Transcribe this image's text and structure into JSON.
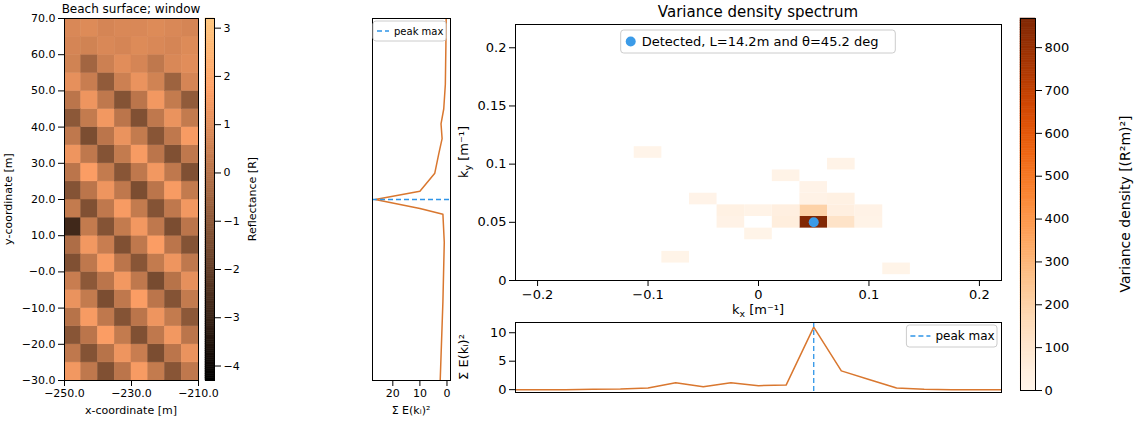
{
  "chart_data": [
    {
      "type": "heatmap",
      "title": "Beach surface; window",
      "xlabel": "x-coordinate [m]",
      "ylabel": "y-coordinate [m]",
      "xlim": [
        -250,
        -210
      ],
      "ylim": [
        -30,
        70
      ],
      "xticks": [
        {
          "value": -250,
          "label": "−250.0"
        },
        {
          "value": -230,
          "label": "−230.0"
        },
        {
          "value": -210,
          "label": "−210.0"
        }
      ],
      "yticks": [
        {
          "value": 70,
          "label": "70.0"
        },
        {
          "value": 60,
          "label": "60.0"
        },
        {
          "value": 50,
          "label": "50.0"
        },
        {
          "value": 40,
          "label": "40.0"
        },
        {
          "value": 30,
          "label": "30.0"
        },
        {
          "value": 20,
          "label": "20.0"
        },
        {
          "value": 10,
          "label": "10.0"
        },
        {
          "value": 0,
          "label": "−0.0"
        },
        {
          "value": -10,
          "label": "−10.0"
        },
        {
          "value": -20,
          "label": "−20.0"
        },
        {
          "value": -30,
          "label": "−30.0"
        }
      ],
      "x_edges": [
        -250,
        -245,
        -240,
        -235,
        -230,
        -225,
        -220,
        -215,
        -210
      ],
      "y_edges": [
        -30,
        -25,
        -20,
        -15,
        -10,
        -5,
        0,
        5,
        10,
        15,
        20,
        25,
        30,
        35,
        40,
        45,
        50,
        55,
        60,
        65,
        70
      ],
      "z": [
        [
          1.4,
          0.2,
          -1.3,
          0.1,
          1.5,
          0.3,
          -1.1,
          0.2
        ],
        [
          0.2,
          -1.2,
          0.0,
          1.3,
          0.4,
          -1.4,
          0.1,
          1.2
        ],
        [
          -1.1,
          0.1,
          1.6,
          0.3,
          -1.3,
          0.2,
          1.4,
          0.1
        ],
        [
          0.0,
          1.5,
          0.2,
          -1.2,
          0.1,
          1.3,
          0.3,
          -1.0
        ],
        [
          1.2,
          0.3,
          -1.4,
          0.2,
          1.6,
          0.1,
          -1.2,
          0.3
        ],
        [
          0.4,
          -1.0,
          0.1,
          1.4,
          0.2,
          -1.5,
          0.0,
          1.1
        ],
        [
          -1.3,
          0.2,
          1.5,
          0.1,
          -1.1,
          0.3,
          1.3,
          0.2
        ],
        [
          -0.2,
          1.4,
          0.4,
          -1.3,
          0.2,
          1.6,
          0.1,
          -1.2
        ],
        [
          -2.8,
          0.3,
          -1.2,
          0.3,
          1.4,
          0.2,
          -1.4,
          0.1
        ],
        [
          0.3,
          -1.3,
          0.2,
          1.5,
          0.3,
          -1.2,
          0.2,
          1.4
        ],
        [
          -1.2,
          0.1,
          1.3,
          0.2,
          -1.4,
          0.1,
          1.5,
          0.3
        ],
        [
          0.1,
          1.6,
          0.3,
          -1.1,
          0.2,
          1.4,
          0.2,
          -1.3
        ],
        [
          1.3,
          0.2,
          -1.2,
          0.3,
          1.5,
          0.1,
          -1.3,
          0.2
        ],
        [
          0.2,
          -1.4,
          0.1,
          1.2,
          0.3,
          -1.1,
          0.2,
          1.5
        ],
        [
          -1.0,
          0.3,
          1.4,
          0.1,
          -1.3,
          0.2,
          1.2,
          0.3
        ],
        [
          0.1,
          1.3,
          0.2,
          -1.2,
          0.1,
          1.4,
          0.3,
          -0.9
        ],
        [
          1.1,
          0.4,
          -0.9,
          0.5,
          1.2,
          0.6,
          -0.6,
          0.7
        ],
        [
          0.6,
          -0.5,
          0.5,
          1.0,
          0.7,
          0.2,
          0.8,
          1.0
        ],
        [
          0.7,
          0.6,
          0.8,
          0.7,
          0.9,
          0.8,
          0.7,
          0.9
        ],
        [
          0.8,
          0.9,
          0.7,
          0.8,
          0.8,
          0.9,
          0.8,
          0.7
        ]
      ],
      "colorbar": {
        "label": "Reflectance [R]",
        "range": [
          -4.3,
          3.2
        ],
        "ticks": [
          3,
          2,
          1,
          0,
          {
            "value": -1,
            "label": "−1"
          },
          {
            "value": -2,
            "label": "−2"
          },
          {
            "value": -3,
            "label": "−3"
          },
          {
            "value": -4,
            "label": "−4"
          }
        ]
      }
    },
    {
      "type": "line",
      "xlabel": "Σ E(kᵢ)²",
      "xlim": [
        27.5,
        -1.3
      ],
      "xticks": [
        20,
        10,
        0
      ],
      "ylim": [
        -0.22,
        0.22
      ],
      "tick_labels": "x",
      "x": [
        0.3,
        0.4,
        0.5,
        0.6,
        1.2,
        2.2,
        1.8,
        3.0,
        4.5,
        10,
        26.5,
        10,
        1.5,
        1.0,
        1.5,
        2.5
      ],
      "y": [
        0.22,
        0.187,
        0.164,
        0.14,
        0.11,
        0.092,
        0.074,
        0.056,
        0.032,
        0.01,
        0.0,
        -0.011,
        -0.018,
        -0.052,
        -0.124,
        -0.22
      ],
      "color": "#d9772f",
      "legend": "top-left",
      "peak": {
        "name": "peak max",
        "y": 0.0,
        "color": "#2f95e8",
        "line_style": "dashed"
      }
    },
    {
      "type": "heatmap",
      "title": "Variance density spectrum",
      "xlabel": "kx [m⁻¹]",
      "ylabel": "ky [m⁻¹]",
      "xlim": [
        -0.22,
        0.22
      ],
      "ylim": [
        0,
        0.22
      ],
      "xticks": [
        {
          "value": -0.2,
          "label": "−0.2"
        },
        {
          "value": -0.1,
          "label": "−0.1"
        },
        0,
        0.1,
        0.2
      ],
      "yticks": [
        0,
        0.05,
        0.1,
        0.15,
        0.2
      ],
      "cell_size": [
        0.025,
        0.01
      ],
      "cells": [
        {
          "kx": 0.05,
          "ky": 0.05,
          "value": 860
        },
        {
          "kx": 0.05,
          "ky": 0.06,
          "value": 200
        },
        {
          "kx": 0.075,
          "ky": 0.05,
          "value": 120
        },
        {
          "kx": 0.075,
          "ky": 0.06,
          "value": 40
        },
        {
          "kx": 0.075,
          "ky": 0.07,
          "value": 30
        },
        {
          "kx": 0.025,
          "ky": 0.05,
          "value": 50
        },
        {
          "kx": 0.025,
          "ky": 0.06,
          "value": 40
        },
        {
          "kx": -0.025,
          "ky": 0.06,
          "value": 30
        },
        {
          "kx": -0.025,
          "ky": 0.05,
          "value": 20
        },
        {
          "kx": 0,
          "ky": 0.06,
          "value": 15
        },
        {
          "kx": 0.05,
          "ky": 0.07,
          "value": 20
        },
        {
          "kx": 0.025,
          "ky": 0.09,
          "value": 15
        },
        {
          "kx": 0.075,
          "ky": 0.1,
          "value": 15
        },
        {
          "kx": 0.1,
          "ky": 0.06,
          "value": 20
        },
        {
          "kx": 0.1,
          "ky": 0.05,
          "value": 15
        },
        {
          "kx": -0.075,
          "ky": 0.02,
          "value": 10
        },
        {
          "kx": -0.05,
          "ky": 0.07,
          "value": 12
        },
        {
          "kx": 0.125,
          "ky": 0.01,
          "value": 10
        },
        {
          "kx": 0,
          "ky": 0.04,
          "value": 10
        },
        {
          "kx": 0.05,
          "ky": 0.08,
          "value": 12
        },
        {
          "kx": -0.1,
          "ky": 0.11,
          "value": 8
        }
      ],
      "colorbar": {
        "label": "Variance density [(R²m)²]",
        "range": [
          0,
          868
        ],
        "ticks": [
          0,
          100,
          200,
          300,
          400,
          500,
          600,
          700,
          800
        ]
      },
      "detected": {
        "name": "Detected, L=14.2m and θ=45.2 deg",
        "x": 0.05,
        "y": 0.05,
        "color": "#3b9be8"
      },
      "legend": "top"
    },
    {
      "type": "line",
      "ylabel": "Σ E(kᵢ)²",
      "xlim": [
        -0.22,
        0.22
      ],
      "ylim": [
        -0.5,
        11.8
      ],
      "yticks": [
        0,
        5,
        10
      ],
      "tick_labels": "y",
      "x": [
        -0.225,
        -0.2,
        -0.175,
        -0.15,
        -0.125,
        -0.1,
        -0.075,
        -0.05,
        -0.025,
        0,
        0.025,
        0.05,
        0.075,
        0.1,
        0.125,
        0.15,
        0.175,
        0.2,
        0.225
      ],
      "values": [
        0,
        0,
        0,
        0.05,
        0.1,
        0.3,
        1.2,
        0.5,
        1.2,
        0.7,
        0.8,
        11,
        3.3,
        1.8,
        0.3,
        0.05,
        0,
        0,
        0
      ],
      "color": "#d9772f",
      "legend": "top-right",
      "peak": {
        "name": "peak max",
        "x": 0.05,
        "color": "#2f95e8",
        "line_style": "dashed"
      }
    }
  ]
}
